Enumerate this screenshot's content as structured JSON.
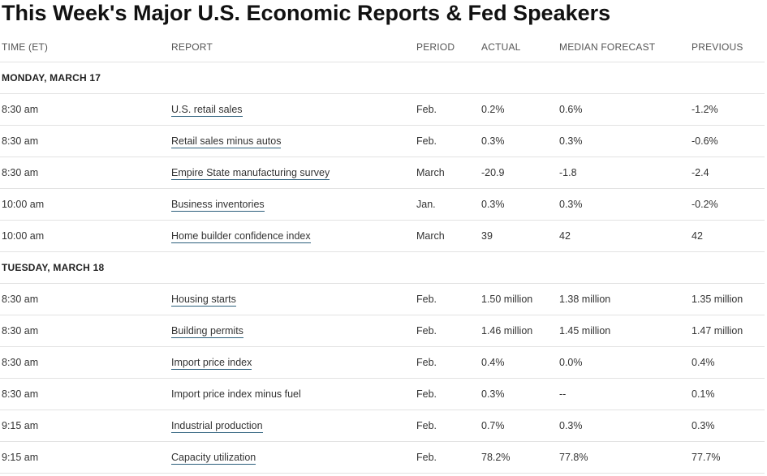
{
  "title": "This Week's Major U.S. Economic Reports & Fed Speakers",
  "headers": {
    "time": "TIME (ET)",
    "report": "REPORT",
    "period": "PERIOD",
    "actual": "ACTUAL",
    "median": "MEDIAN FORECAST",
    "previous": "PREVIOUS"
  },
  "days": [
    {
      "label": "MONDAY, MARCH 17",
      "rows": [
        {
          "time": "8:30 am",
          "report": "U.S. retail sales",
          "link": true,
          "period": "Feb.",
          "actual": "0.2%",
          "median": "0.6%",
          "previous": "-1.2%"
        },
        {
          "time": "8:30 am",
          "report": "Retail sales minus autos",
          "link": true,
          "period": "Feb.",
          "actual": "0.3%",
          "median": "0.3%",
          "previous": "-0.6%"
        },
        {
          "time": "8:30 am",
          "report": "Empire State manufacturing survey",
          "link": true,
          "period": "March",
          "actual": "-20.9",
          "median": "-1.8",
          "previous": "-2.4"
        },
        {
          "time": "10:00 am",
          "report": "Business inventories",
          "link": true,
          "period": "Jan.",
          "actual": "0.3%",
          "median": "0.3%",
          "previous": "-0.2%"
        },
        {
          "time": "10:00 am",
          "report": "Home builder confidence index",
          "link": true,
          "period": "March",
          "actual": "39",
          "median": "42",
          "previous": "42"
        }
      ]
    },
    {
      "label": "TUESDAY, MARCH 18",
      "rows": [
        {
          "time": "8:30 am",
          "report": "Housing starts",
          "link": true,
          "period": "Feb.",
          "actual": "1.50 million",
          "median": "1.38 million",
          "previous": "1.35 million"
        },
        {
          "time": "8:30 am",
          "report": "Building permits",
          "link": true,
          "period": "Feb.",
          "actual": "1.46 million",
          "median": "1.45 million",
          "previous": "1.47 million"
        },
        {
          "time": "8:30 am",
          "report": "Import price index",
          "link": true,
          "period": "Feb.",
          "actual": "0.4%",
          "median": "0.0%",
          "previous": "0.4%"
        },
        {
          "time": "8:30 am",
          "report": "Import price index minus fuel",
          "link": false,
          "period": "Feb.",
          "actual": "0.3%",
          "median": "--",
          "previous": "0.1%"
        },
        {
          "time": "9:15 am",
          "report": "Industrial production",
          "link": true,
          "period": "Feb.",
          "actual": "0.7%",
          "median": "0.3%",
          "previous": "0.3%"
        },
        {
          "time": "9:15 am",
          "report": "Capacity utilization",
          "link": true,
          "period": "Feb.",
          "actual": "78.2%",
          "median": "77.8%",
          "previous": "77.7%"
        }
      ]
    }
  ]
}
